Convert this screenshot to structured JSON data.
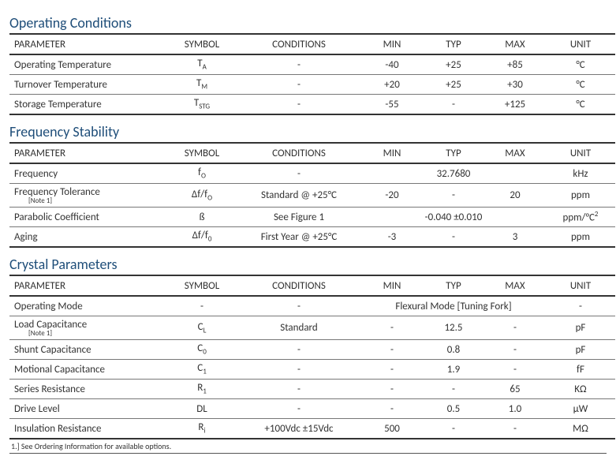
{
  "colors": {
    "heading": "#1f4e79",
    "rule": "#333333",
    "row_rule": "#777777",
    "text": "#333333",
    "bg": "#ffffff"
  },
  "columns": [
    "PARAMETER",
    "SYMBOL",
    "CONDITIONS",
    "MIN",
    "TYP",
    "MAX",
    "UNIT"
  ],
  "sections": [
    {
      "title": "Operating Conditions",
      "rows": [
        {
          "param": "Operating Temperature",
          "symbol_html": "T<span class='sub'>A</span>",
          "cond": "-",
          "min": "-40",
          "typ": "+25",
          "max": "+85",
          "unit": "°C"
        },
        {
          "param": "Turnover Temperature",
          "symbol_html": "T<span class='sub'>M</span>",
          "cond": "-",
          "min": "+20",
          "typ": "+25",
          "max": "+30",
          "unit": "°C"
        },
        {
          "param": "Storage Temperature",
          "symbol_html": "T<span class='sub'>STG</span>",
          "cond": "-",
          "min": "-55",
          "typ": "-",
          "max": "+125",
          "unit": "°C"
        }
      ]
    },
    {
      "title": "Frequency Stability",
      "rows": [
        {
          "param": "Frequency",
          "symbol_html": "f<span class='sub'>O</span>",
          "cond": "-",
          "min": "",
          "typ": "32.7680",
          "max": "",
          "unit": "kHz"
        },
        {
          "param": "Frequency Tolerance",
          "note": "[Note 1]",
          "symbol_html": "Δf/f<span class='sub'>O</span>",
          "cond": "Standard @ +25°C",
          "min": "-20",
          "typ": "-",
          "max": "20",
          "unit": "ppm"
        },
        {
          "param": "Parabolic Coefficient",
          "symbol_html": "ß",
          "cond": "See Figure 1",
          "span_typ": "-0.040 ±0.010",
          "unit_html": "ppm/°C<span class='sup'>2</span>"
        },
        {
          "param": "Aging",
          "symbol_html": "Δf/f<span class='sub'>0</span>",
          "cond": "First Year @ +25°C",
          "min": "-3",
          "typ": "-",
          "max": "3",
          "unit": "ppm"
        }
      ]
    },
    {
      "title": "Crystal Parameters",
      "rows": [
        {
          "param": "Operating Mode",
          "symbol_html": "-",
          "cond": "-",
          "span_typ": "Flexural Mode [Tuning Fork]",
          "unit": "-"
        },
        {
          "param": "Load Capacitance",
          "note": "[Note 1]",
          "symbol_html": "C<span class='sub'>L</span>",
          "cond": "Standard",
          "min": "-",
          "typ": "12.5",
          "max": "-",
          "unit": "pF"
        },
        {
          "param": "Shunt Capacitance",
          "symbol_html": "C<span class='sub'>0</span>",
          "cond": "-",
          "min": "-",
          "typ": "0.8",
          "max": "-",
          "unit": "pF"
        },
        {
          "param": "Motional Capacitance",
          "symbol_html": "C<span class='sub'>1</span>",
          "cond": "-",
          "min": "-",
          "typ": "1.9",
          "max": "-",
          "unit": "fF"
        },
        {
          "param": "Series Resistance",
          "symbol_html": "R<span class='sub'>1</span>",
          "cond": "-",
          "min": "-",
          "typ": "-",
          "max": "65",
          "unit": "KΩ"
        },
        {
          "param": "Drive Level",
          "symbol_html": "DL",
          "cond": "-",
          "min": "-",
          "typ": "0.5",
          "max": "1.0",
          "unit": "µW"
        },
        {
          "param": "Insulation Resistance",
          "symbol_html": "R<span class='sub'>i</span>",
          "cond": "+100Vdc ±15Vdc",
          "min": "500",
          "typ": "-",
          "max": "-",
          "unit": "MΩ"
        }
      ]
    }
  ],
  "footnote": "1.]  See Ordering Information for available options."
}
